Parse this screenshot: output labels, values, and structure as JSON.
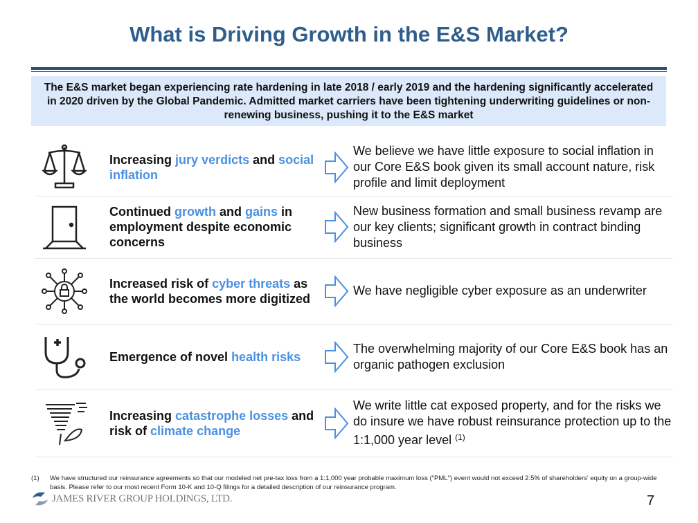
{
  "title": "What is Driving Growth in the E&S Market?",
  "summary": "The E&S market began experiencing rate hardening in late 2018 / early 2019 and the hardening significantly accelerated in 2020 driven by the Global Pandemic. Admitted market carriers have been tightening underwriting guidelines or non-renewing business, pushing it to the E&S market",
  "rows": [
    {
      "icon": "scales-of-justice-icon",
      "left": [
        {
          "text": "Increasing ",
          "hl": false
        },
        {
          "text": "jury verdicts",
          "hl": true
        },
        {
          "text": " and ",
          "hl": false
        },
        {
          "text": "social inflation",
          "hl": true
        }
      ],
      "right": "We believe we have little exposure to social inflation in our Core E&S book given its small account nature, risk profile and limit deployment",
      "sup": ""
    },
    {
      "icon": "open-door-icon",
      "left": [
        {
          "text": "Continued ",
          "hl": false
        },
        {
          "text": "growth",
          "hl": true
        },
        {
          "text": " and ",
          "hl": false
        },
        {
          "text": "gains",
          "hl": true
        },
        {
          "text": " in employment despite economic concerns",
          "hl": false
        }
      ],
      "right": "New business formation and small business revamp are our key clients; significant growth in contract binding business",
      "sup": ""
    },
    {
      "icon": "cyber-lock-network-icon",
      "left": [
        {
          "text": "Increased risk of ",
          "hl": false
        },
        {
          "text": "cyber threats",
          "hl": true
        },
        {
          "text": " as the world becomes more digitized",
          "hl": false
        }
      ],
      "right": "We have negligible cyber exposure as an underwriter",
      "sup": ""
    },
    {
      "icon": "stethoscope-icon",
      "left": [
        {
          "text": "Emergence of novel ",
          "hl": false
        },
        {
          "text": "health risks",
          "hl": true
        }
      ],
      "right": "The overwhelming majority of our Core E&S book has an organic pathogen exclusion",
      "sup": ""
    },
    {
      "icon": "tornado-icon",
      "left": [
        {
          "text": "Increasing ",
          "hl": false
        },
        {
          "text": "catastrophe losses",
          "hl": true
        },
        {
          "text": " and risk of ",
          "hl": false
        },
        {
          "text": "climate change",
          "hl": true
        }
      ],
      "right": "We write little cat exposed property, and for the risks we do insure we have robust reinsurance protection up to the 1:1,000 year level ",
      "sup": "(1)"
    }
  ],
  "footnote": {
    "number": "(1)",
    "text": "We have structured our reinsurance agreements so that our modeled net pre-tax loss from a 1:1,000 year probable maximum loss (\"PML\") event would not exceed 2.5% of shareholders' equity on a group-wide basis. Please refer to our most recent Form 10-K and 10-Q filings for a detailed description of our reinsurance program."
  },
  "logo_text": "JAMES RIVER GROUP HOLDINGS, LTD.",
  "page_number": "7",
  "colors": {
    "title": "#2f5d8c",
    "highlight": "#4a90e2",
    "summary_bg": "#dce9fa"
  }
}
